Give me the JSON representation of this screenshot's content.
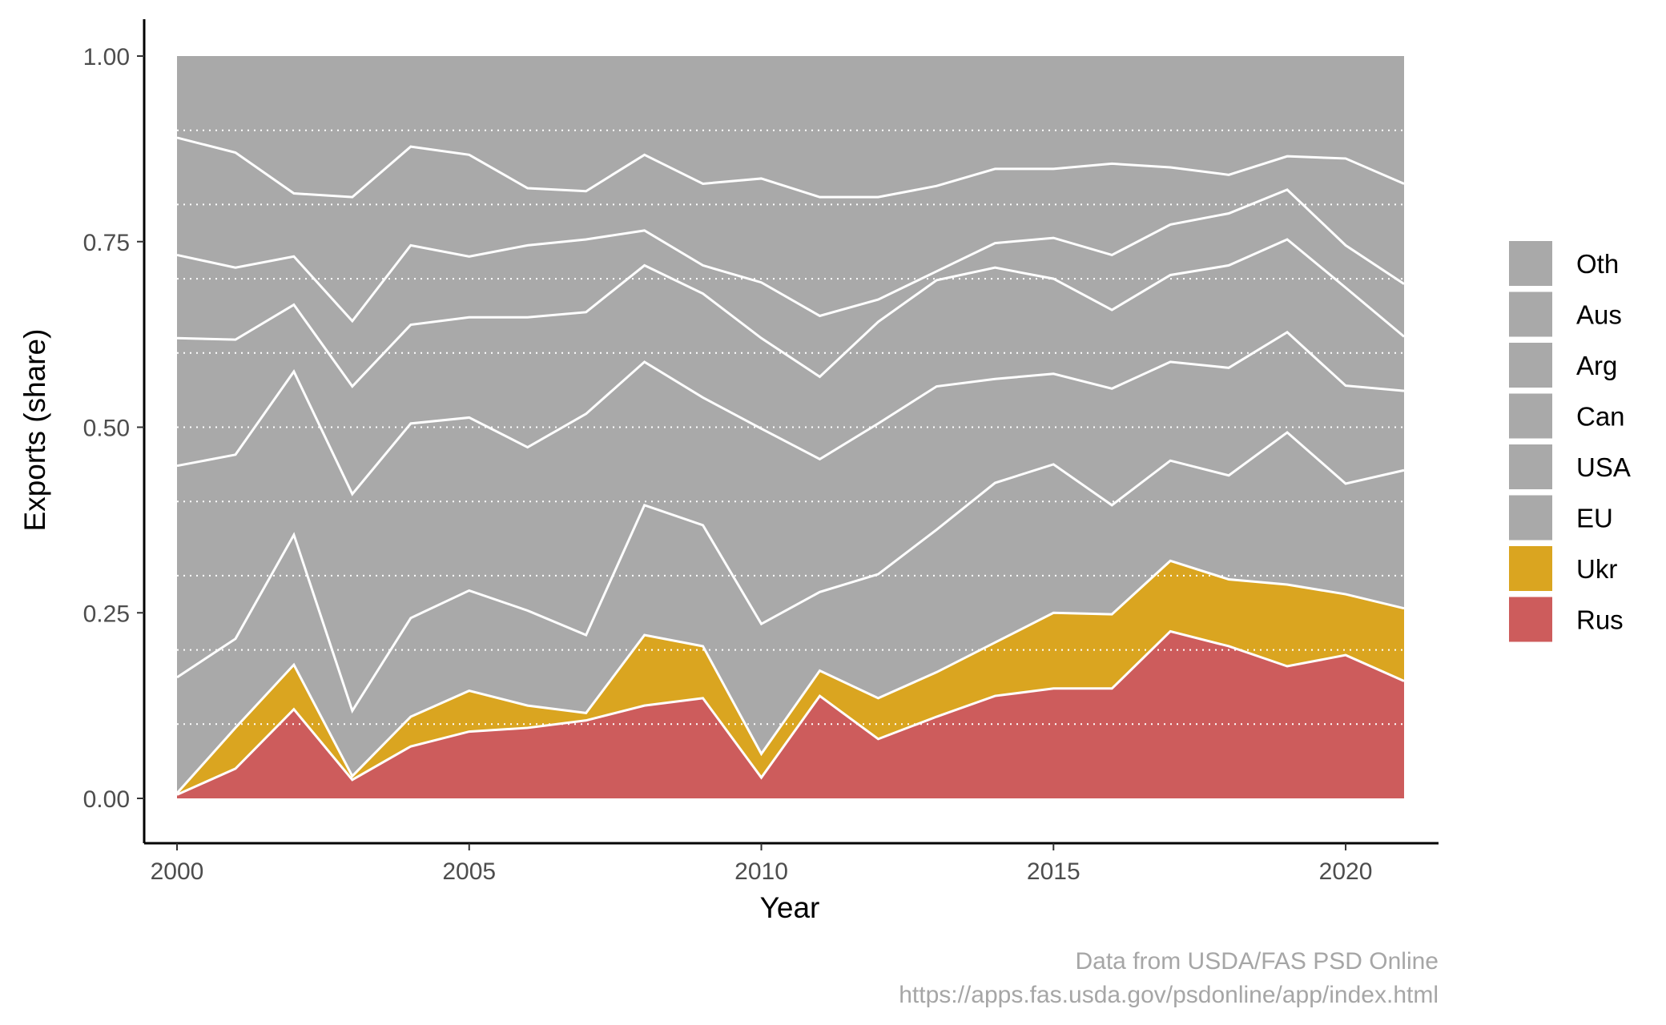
{
  "chart_data": {
    "type": "area",
    "stacked": true,
    "xlabel": "Year",
    "ylabel": "Exports (share)",
    "xlim": [
      2000,
      2021
    ],
    "ylim": [
      0,
      1
    ],
    "x_ticks": [
      2000,
      2005,
      2010,
      2015,
      2020
    ],
    "y_ticks": [
      0,
      0.25,
      0.5,
      0.75,
      1.0
    ],
    "y_tick_labels": [
      "0.00",
      "0.25",
      "0.50",
      "0.75",
      "1.00"
    ],
    "grid": "horizontal dotted white lines every 0.1",
    "legend_position": "right",
    "x": [
      2000,
      2001,
      2002,
      2003,
      2004,
      2005,
      2006,
      2007,
      2008,
      2009,
      2010,
      2011,
      2012,
      2013,
      2014,
      2015,
      2016,
      2017,
      2018,
      2019,
      2020,
      2021
    ],
    "series": [
      {
        "name": "Rus",
        "color": "#cd5c5c",
        "cumulative": [
          0.005,
          0.04,
          0.12,
          0.025,
          0.07,
          0.09,
          0.095,
          0.105,
          0.125,
          0.135,
          0.028,
          0.138,
          0.08,
          0.11,
          0.138,
          0.148,
          0.148,
          0.225,
          0.205,
          0.178,
          0.193,
          0.158
        ]
      },
      {
        "name": "Ukr",
        "color": "#daa520",
        "cumulative": [
          0.007,
          0.095,
          0.18,
          0.03,
          0.11,
          0.145,
          0.125,
          0.115,
          0.22,
          0.205,
          0.06,
          0.172,
          0.135,
          0.17,
          0.21,
          0.25,
          0.248,
          0.32,
          0.295,
          0.288,
          0.275,
          0.256
        ]
      },
      {
        "name": "EU",
        "color": "#a9a9a9",
        "cumulative": [
          0.163,
          0.215,
          0.355,
          0.118,
          0.243,
          0.28,
          0.253,
          0.22,
          0.395,
          0.368,
          0.235,
          0.278,
          0.302,
          0.362,
          0.425,
          0.45,
          0.395,
          0.455,
          0.435,
          0.493,
          0.424,
          0.442
        ]
      },
      {
        "name": "USA",
        "color": "#a9a9a9",
        "cumulative": [
          0.448,
          0.463,
          0.575,
          0.41,
          0.505,
          0.513,
          0.473,
          0.518,
          0.588,
          0.54,
          0.498,
          0.457,
          0.505,
          0.555,
          0.565,
          0.572,
          0.552,
          0.588,
          0.58,
          0.628,
          0.556,
          0.549
        ]
      },
      {
        "name": "Can",
        "color": "#a9a9a9",
        "cumulative": [
          0.62,
          0.618,
          0.665,
          0.555,
          0.638,
          0.648,
          0.648,
          0.655,
          0.718,
          0.68,
          0.62,
          0.568,
          0.642,
          0.698,
          0.715,
          0.7,
          0.658,
          0.705,
          0.718,
          0.753,
          0.688,
          0.622
        ]
      },
      {
        "name": "Arg",
        "color": "#a9a9a9",
        "cumulative": [
          0.732,
          0.715,
          0.73,
          0.643,
          0.745,
          0.73,
          0.745,
          0.753,
          0.765,
          0.718,
          0.695,
          0.65,
          0.672,
          0.71,
          0.748,
          0.755,
          0.732,
          0.773,
          0.788,
          0.82,
          0.745,
          0.693
        ]
      },
      {
        "name": "Aus",
        "color": "#a9a9a9",
        "cumulative": [
          0.89,
          0.87,
          0.815,
          0.81,
          0.878,
          0.867,
          0.822,
          0.818,
          0.867,
          0.828,
          0.835,
          0.81,
          0.81,
          0.825,
          0.848,
          0.848,
          0.855,
          0.85,
          0.84,
          0.865,
          0.862,
          0.828
        ]
      },
      {
        "name": "Oth",
        "color": "#a9a9a9",
        "cumulative": [
          1,
          1,
          1,
          1,
          1,
          1,
          1,
          1,
          1,
          1,
          1,
          1,
          1,
          1,
          1,
          1,
          1,
          1,
          1,
          1,
          1,
          1
        ]
      }
    ],
    "legend_order": [
      "Oth",
      "Aus",
      "Arg",
      "Can",
      "USA",
      "EU",
      "Ukr",
      "Rus"
    ]
  },
  "caption": {
    "line1": "Data from USDA/FAS PSD Online",
    "line2": "https://apps.fas.usda.gov/psdonline/app/index.html"
  }
}
